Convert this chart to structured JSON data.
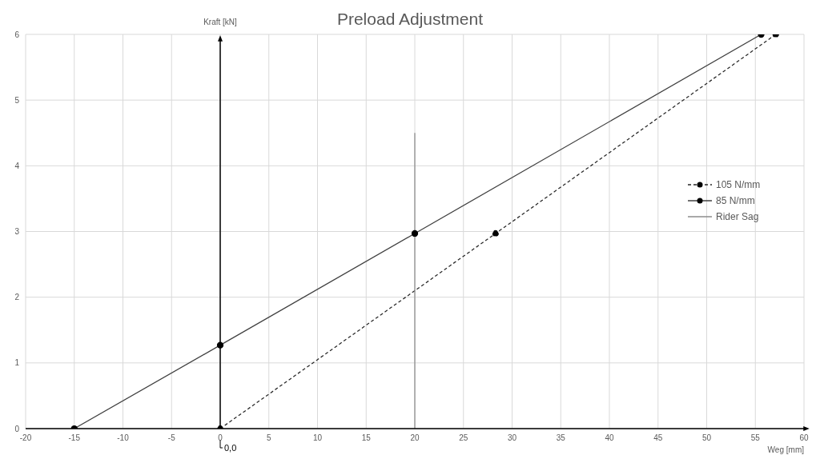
{
  "chart_data": {
    "type": "line",
    "title": "Preload Adjustment",
    "xlabel": "Weg [mm]",
    "ylabel": "Kraft [kN]",
    "xlim": [
      -20,
      60
    ],
    "xticks": [
      -20,
      -15,
      -10,
      -5,
      0,
      5,
      10,
      15,
      20,
      25,
      30,
      35,
      40,
      45,
      50,
      55,
      60
    ],
    "ylim": [
      0,
      6
    ],
    "yticks": [
      0,
      1,
      2,
      3,
      4,
      5,
      6
    ],
    "grid": true,
    "legend": "right",
    "annotations": [
      {
        "text": "0,0",
        "x": 0,
        "y": 0
      }
    ],
    "ref_lines": [
      {
        "axis": "x",
        "value": 0,
        "color": "#000000"
      }
    ],
    "series": [
      {
        "name": "105 N/mm",
        "color": "#262626",
        "x": [
          0,
          28.3,
          57.1
        ],
        "values": [
          0,
          2.97,
          6
        ],
        "line_style": "dashed",
        "marker": "circle"
      },
      {
        "name": "85 N/mm",
        "color": "#404040",
        "x": [
          -15,
          0,
          20,
          55.6
        ],
        "values": [
          0,
          1.27,
          2.97,
          6
        ],
        "line_style": "solid",
        "marker": "circle"
      },
      {
        "name": "Rider Sag",
        "color": "#8c8c8c",
        "x": [
          20,
          20
        ],
        "values": [
          0,
          4.5
        ],
        "line_style": "solid",
        "marker": "none"
      }
    ]
  }
}
